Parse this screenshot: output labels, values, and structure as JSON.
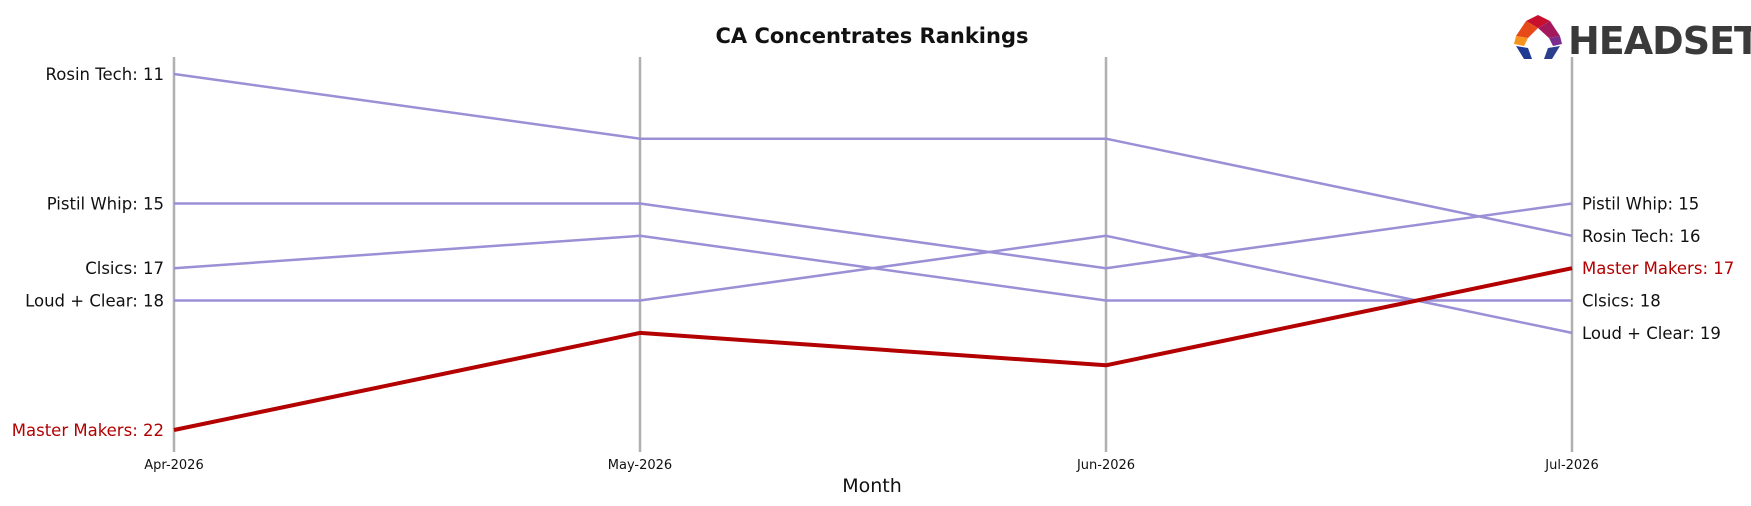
{
  "chart_data": {
    "type": "line",
    "title": "CA Concentrates Rankings",
    "xlabel": "Month",
    "ylabel": "",
    "categories": [
      "Apr-2026",
      "May-2026",
      "Jun-2026",
      "Jul-2026"
    ],
    "y_axis": "rank (inverted)",
    "ylim": [
      22,
      11
    ],
    "grid": "vertical lines at each month",
    "series": [
      {
        "name": "Rosin Tech",
        "values": [
          11,
          13,
          13,
          16
        ],
        "color": "#9b8fd6",
        "highlight": false,
        "start_label": "Rosin Tech: 11",
        "end_label": "Rosin Tech: 16"
      },
      {
        "name": "Pistil Whip",
        "values": [
          15,
          15,
          17,
          15
        ],
        "color": "#9b8fd6",
        "highlight": false,
        "start_label": "Pistil Whip: 15",
        "end_label": "Pistil Whip: 15"
      },
      {
        "name": "Clsics",
        "values": [
          17,
          16,
          18,
          18
        ],
        "color": "#9b8fd6",
        "highlight": false,
        "start_label": "Clsics: 17",
        "end_label": "Clsics: 18"
      },
      {
        "name": "Loud + Clear",
        "values": [
          18,
          18,
          16,
          19
        ],
        "color": "#9b8fd6",
        "highlight": false,
        "start_label": "Loud + Clear: 18",
        "end_label": "Loud + Clear: 19"
      },
      {
        "name": "Master Makers",
        "values": [
          22,
          19,
          20,
          17
        ],
        "color": "#b30000",
        "highlight": true,
        "start_label": "Master Makers: 22",
        "end_label": "Master Makers: 17"
      }
    ]
  },
  "logo": {
    "text": "HEADSET",
    "icon": "headset-hexagon-logo-icon"
  }
}
